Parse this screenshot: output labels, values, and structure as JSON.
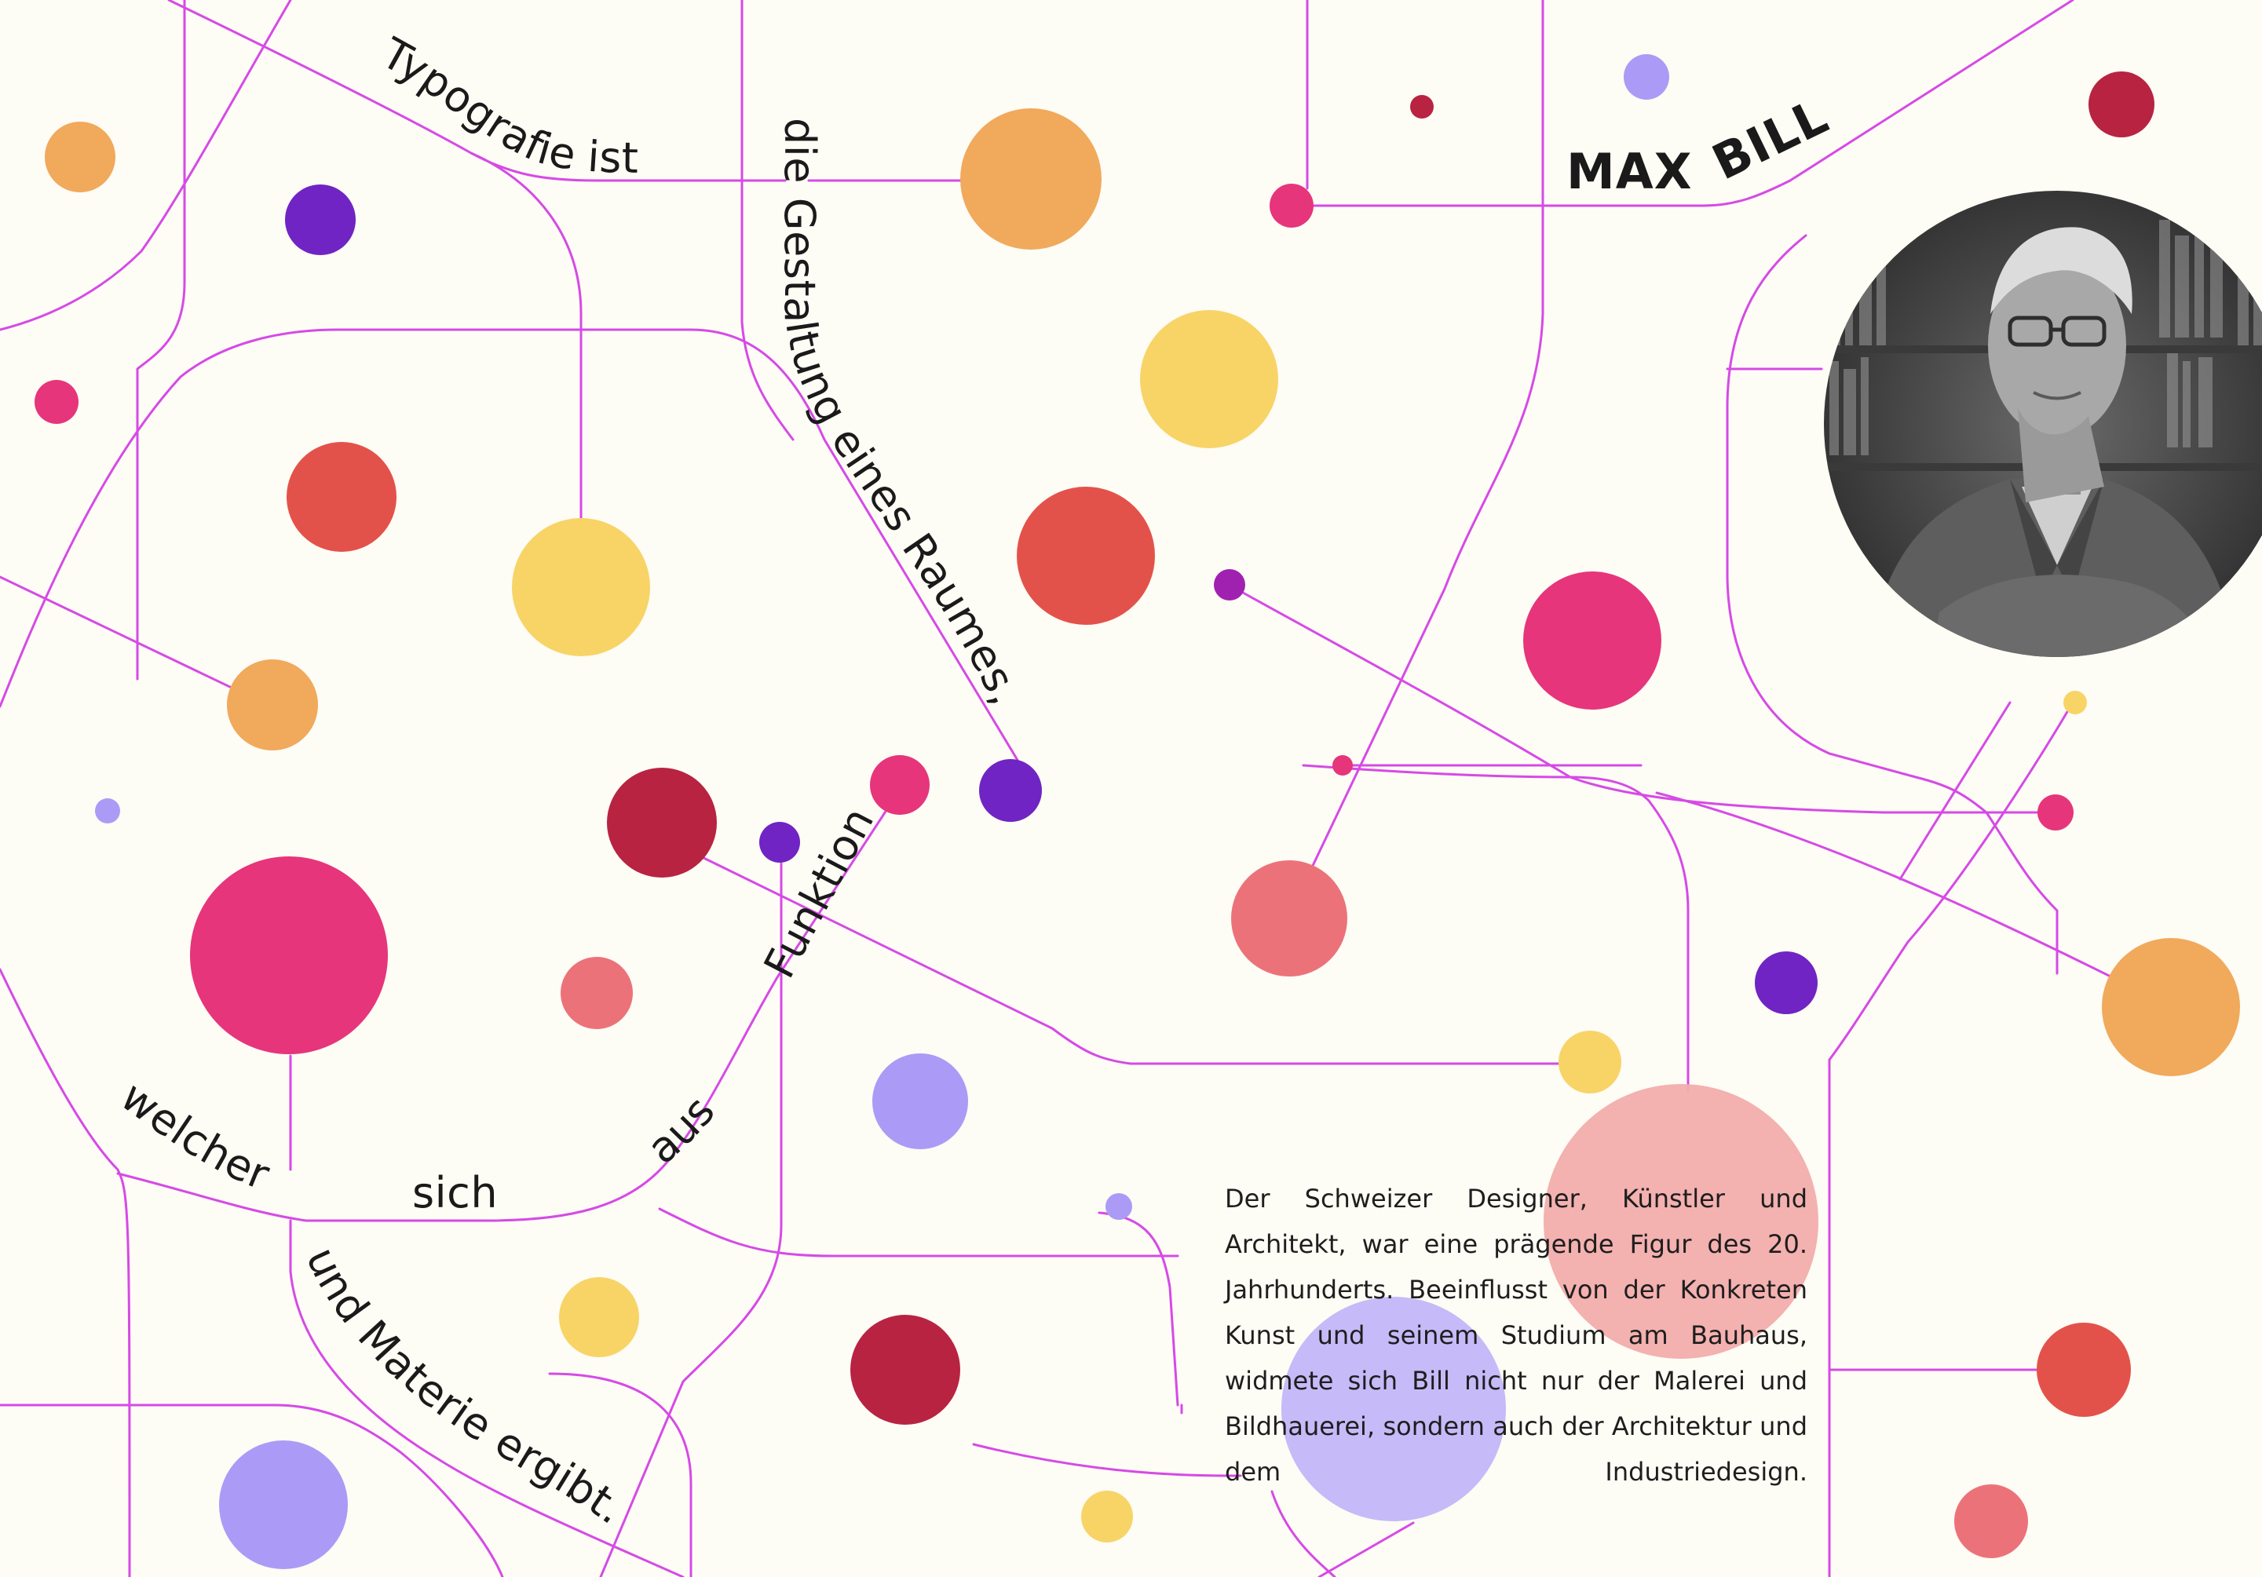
{
  "poem": {
    "segments": [
      "Typografie ist",
      "die Gestaltung eines Raumes,",
      "Funktion",
      "welcher",
      "sich",
      "aus",
      "und Materie ergibt."
    ]
  },
  "title": {
    "first": "MAX",
    "last": "BILL"
  },
  "biography": "Der Schweizer Designer, Künstler und Architekt, war eine prägende Figur des 20. Jahrhunderts. Beeinflusst von der Konkreten Kunst und seinem Studium am Bauhaus, widmete sich Bill nicht nur der Malerei und Bildhauerei, sondern auch der Architektur und dem Industriedesign.",
  "colors": {
    "background": "#fdfcf5",
    "line": "#d64ae6",
    "orange": "#f1a95c",
    "yellow": "#f8d467",
    "red": "#e3524a",
    "crimson": "#b82342",
    "magenta": "#e6357a",
    "coral": "#ec727a",
    "purple": "#7024c4",
    "lavender": "#ab9bf6",
    "pink": "#f2adac"
  },
  "icons": {
    "portrait": "portrait-icon"
  }
}
